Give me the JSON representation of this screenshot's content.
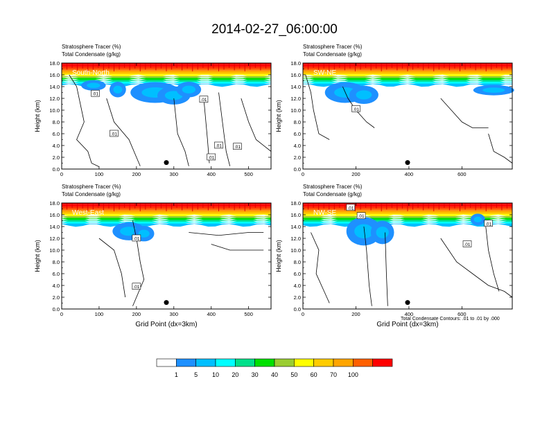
{
  "main_title": "2014-02-27_06:00:00",
  "footer_note": "Total Condensate Contours: .01 to .01 by .000",
  "colorbar": {
    "labels": [
      "1",
      "5",
      "10",
      "20",
      "30",
      "40",
      "50",
      "60",
      "70",
      "100"
    ],
    "colors": [
      "#ffffff",
      "#1e90ff",
      "#00bfff",
      "#00ffff",
      "#00e08a",
      "#00e000",
      "#9acd32",
      "#ffff00",
      "#ffcc00",
      "#ffa500",
      "#ff6000",
      "#ff0000"
    ]
  },
  "chart_data": [
    {
      "type": "heatmap",
      "name": "South-North",
      "left_title_1": "Stratosphere Tracer   (%)",
      "left_title_2": "Total Condensate   (g/kg)",
      "ylabel": "Height (km)",
      "xlabel": "",
      "yticks": [
        "0.0",
        "2.0",
        "4.0",
        "6.0",
        "8.0",
        "10.0",
        "12.0",
        "14.0",
        "16.0",
        "18.0"
      ],
      "xticks": [
        "0",
        "100",
        "200",
        "300",
        "400",
        "500"
      ],
      "xlim": [
        0,
        560
      ],
      "ylim": [
        0,
        18
      ],
      "contour_labels": [
        ".01",
        ".01",
        ".01",
        ".01",
        ".01",
        ".01"
      ],
      "marker": {
        "x": 280,
        "y": 1.1
      }
    },
    {
      "type": "heatmap",
      "name": "SW-NE",
      "left_title_1": "Stratosphere Tracer   (%)",
      "left_title_2": "Total Condensate   (g/kg)",
      "ylabel": "Height (km)",
      "xlabel": "",
      "yticks": [
        "0.0",
        "2.0",
        "4.0",
        "6.0",
        "8.0",
        "10.0",
        "12.0",
        "14.0",
        "16.0",
        "18.0"
      ],
      "xticks": [
        "0",
        "200",
        "400",
        "600"
      ],
      "xlim": [
        0,
        790
      ],
      "ylim": [
        0,
        18
      ],
      "contour_labels": [
        ".01"
      ],
      "marker": {
        "x": 395,
        "y": 1.1
      }
    },
    {
      "type": "heatmap",
      "name": "West-East",
      "left_title_1": "Stratosphere Tracer   (%)",
      "left_title_2": "Total Condensate   (g/kg)",
      "ylabel": "Height (km)",
      "xlabel": "Grid Point (dx=3km)",
      "yticks": [
        "0.0",
        "2.0",
        "4.0",
        "6.0",
        "8.0",
        "10.0",
        "12.0",
        "14.0",
        "16.0",
        "18.0"
      ],
      "xticks": [
        "0",
        "100",
        "200",
        "300",
        "400",
        "500"
      ],
      "xlim": [
        0,
        560
      ],
      "ylim": [
        0,
        18
      ],
      "contour_labels": [
        ".01",
        ".01"
      ],
      "marker": {
        "x": 280,
        "y": 1.1
      }
    },
    {
      "type": "heatmap",
      "name": "NW-SE",
      "left_title_1": "Stratosphere Tracer   (%)",
      "left_title_2": "Total Condensate   (g/kg)",
      "ylabel": "Height (km)",
      "xlabel": "Grid Point (dx=3km)",
      "yticks": [
        "0.0",
        "2.0",
        "4.0",
        "6.0",
        "8.0",
        "10.0",
        "12.0",
        "14.0",
        "16.0",
        "18.0"
      ],
      "xticks": [
        "0",
        "200",
        "400",
        "600"
      ],
      "xlim": [
        0,
        790
      ],
      "ylim": [
        0,
        18
      ],
      "contour_labels": [
        ".01",
        ".01",
        ".01",
        ".01"
      ],
      "marker": {
        "x": 395,
        "y": 1.1
      }
    }
  ]
}
